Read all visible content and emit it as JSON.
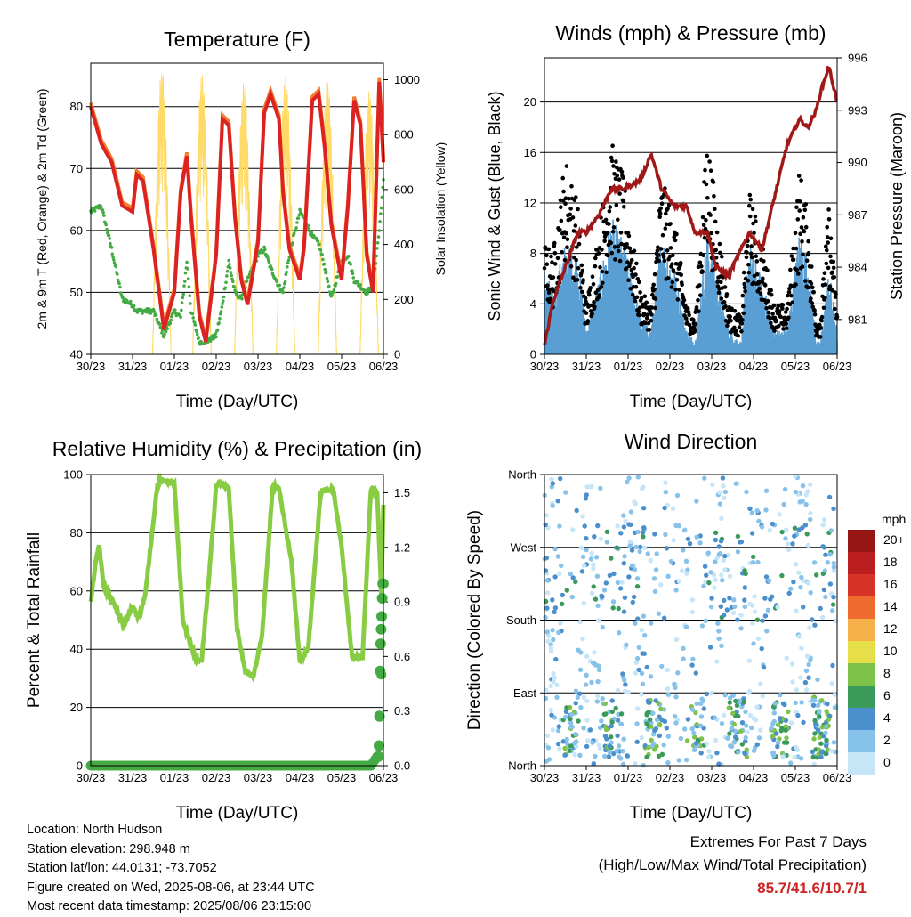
{
  "x_ticks": [
    "30/23",
    "31/23",
    "01/23",
    "02/23",
    "03/23",
    "04/23",
    "05/23",
    "06/23"
  ],
  "colors": {
    "temp_2m": "#dd2222",
    "temp_9m": "#f08030",
    "dewpoint": "#44aa44",
    "solar": "#ffd966",
    "gust": "#000000",
    "wind": "#5a9fd4",
    "pressure": "#a01818",
    "rh": "#88cc44",
    "precip": "#44aa44"
  },
  "chart_data": [
    {
      "type": "line",
      "title": "Temperature (F)",
      "xlabel": "Time (Day/UTC)",
      "ylabel": "2m & 9m T (Red, Orange) & 2m Td (Green)",
      "y2label": "Solar Insolation (Yellow)",
      "ylim": [
        40,
        87
      ],
      "y2lim": [
        0,
        1060
      ],
      "yticks": [
        40,
        50,
        60,
        70,
        80
      ],
      "y2ticks": [
        0,
        200,
        400,
        600,
        800,
        1000
      ],
      "x_days": [
        0,
        0.25,
        0.5,
        0.75,
        1,
        1.1,
        1.25,
        1.5,
        1.75,
        2,
        2.15,
        2.3,
        2.4,
        2.6,
        2.75,
        3,
        3.15,
        3.3,
        3.45,
        3.6,
        3.75,
        4,
        4.15,
        4.3,
        4.5,
        4.6,
        4.75,
        5,
        5.1,
        5.3,
        5.45,
        5.6,
        5.75,
        6,
        6.15,
        6.3,
        6.45,
        6.6,
        6.75,
        6.9,
        7
      ],
      "series": [
        {
          "name": "2m T",
          "values": [
            80,
            74,
            71,
            64,
            63,
            69,
            68,
            57,
            44,
            50,
            66,
            72,
            62,
            46,
            42,
            56,
            78,
            77,
            62,
            52,
            48,
            58,
            79,
            82,
            78,
            66,
            57,
            52,
            57,
            81,
            82,
            73,
            61,
            52,
            64,
            81,
            77,
            56,
            50,
            84,
            71
          ]
        },
        {
          "name": "2m Td",
          "values": [
            63,
            64,
            57,
            49,
            48,
            47,
            47,
            47,
            43,
            47,
            46,
            55,
            47,
            42,
            42,
            43,
            48,
            55,
            50,
            49,
            52,
            56,
            57,
            54,
            51,
            50,
            56,
            63,
            62,
            59,
            58,
            54,
            49,
            55,
            56,
            52,
            51,
            50,
            51,
            60,
            68
          ]
        }
      ],
      "solar_peaks_days": [
        1.7,
        2.66,
        3.66,
        4.66,
        5.66,
        6.66
      ],
      "solar_peak_values": [
        1040,
        1020,
        990,
        1010,
        1000,
        960
      ]
    },
    {
      "type": "line",
      "title": "Winds (mph) & Pressure (mb)",
      "xlabel": "Time (Day/UTC)",
      "ylabel": "Sonic Wind & Gust (Blue, Black)",
      "y2label": "Station Pressure (Maroon)",
      "ylim": [
        0,
        23.5
      ],
      "y2lim": [
        979,
        996
      ],
      "yticks": [
        0,
        4,
        8,
        12,
        16,
        20
      ],
      "y2ticks": [
        981,
        984,
        987,
        990,
        993,
        996
      ],
      "x_days": [
        0,
        0.2,
        0.5,
        0.8,
        1,
        1.3,
        1.6,
        1.9,
        2.3,
        2.55,
        2.8,
        3.1,
        3.4,
        3.6,
        3.9,
        4.1,
        4.4,
        4.7,
        4.9,
        5.2,
        5.5,
        5.8,
        6.1,
        6.3,
        6.5,
        6.6,
        6.8,
        7
      ],
      "series": [
        {
          "name": "Station Pressure",
          "values": [
            979.5,
            982,
            984,
            986,
            986,
            987,
            988.5,
            988.5,
            989,
            990.5,
            988.5,
            987.5,
            987.5,
            986,
            986,
            984,
            983.5,
            985,
            986,
            985,
            988,
            991,
            992.5,
            992,
            993,
            994,
            995.5,
            993.5
          ]
        },
        {
          "name": "Sonic Wind envelope",
          "values": [
            7,
            5,
            9,
            8,
            2,
            6,
            11,
            9,
            3,
            2,
            10,
            7,
            2,
            1,
            10,
            7,
            2,
            1,
            9,
            6,
            2,
            2,
            10,
            8,
            1,
            1,
            7,
            2
          ]
        },
        {
          "name": "Gust envelope",
          "values": [
            9,
            8,
            16,
            12,
            4,
            10,
            17,
            14,
            5,
            4,
            14,
            11,
            4,
            3,
            18,
            12,
            4,
            3,
            13,
            9,
            4,
            4,
            15,
            11,
            3,
            3,
            12,
            4
          ]
        }
      ]
    },
    {
      "type": "line",
      "title": "Relative Humidity (%) & Precipitation (in)",
      "xlabel": "Time (Day/UTC)",
      "ylabel": "Percent & Total Rainfall",
      "ylim": [
        0,
        100
      ],
      "y2lim": [
        0,
        1.6
      ],
      "yticks": [
        0,
        20,
        40,
        60,
        80,
        100
      ],
      "y2ticks": [
        0.0,
        0.3,
        0.6,
        0.9,
        1.2,
        1.5
      ],
      "x_days": [
        0,
        0.1,
        0.2,
        0.3,
        0.5,
        0.8,
        1,
        1.15,
        1.3,
        1.45,
        1.6,
        1.8,
        2,
        2.2,
        2.5,
        2.65,
        2.8,
        3,
        3.15,
        3.3,
        3.5,
        3.7,
        3.9,
        4.1,
        4.35,
        4.5,
        4.8,
        5,
        5.2,
        5.5,
        5.8,
        6,
        6.25,
        6.5,
        6.7,
        6.85,
        6.95,
        7
      ],
      "series": [
        {
          "name": "Relative Humidity",
          "values": [
            56,
            68,
            76,
            62,
            57,
            48,
            55,
            51,
            58,
            78,
            97,
            98,
            97,
            50,
            37,
            36,
            60,
            96,
            97,
            95,
            47,
            32,
            31,
            45,
            96,
            95,
            70,
            36,
            40,
            94,
            95,
            75,
            37,
            37,
            95,
            94,
            58,
            90
          ]
        },
        {
          "name": "Total Precipitation",
          "values": [
            0,
            0,
            0,
            0,
            0,
            0,
            0,
            0,
            0,
            0,
            0,
            0,
            0,
            0,
            0,
            0,
            0,
            0,
            0,
            0,
            0,
            0,
            0,
            0,
            0,
            0,
            0,
            0,
            0,
            0,
            0,
            0,
            0,
            0,
            0,
            0.05,
            0.5,
            1.0
          ]
        }
      ]
    },
    {
      "type": "scatter",
      "title": "Wind Direction",
      "xlabel": "Time (Day/UTC)",
      "ylabel": "Direction (Colored By Speed)",
      "yticks": [
        "North",
        "East",
        "South",
        "West",
        "North"
      ],
      "legend_title": "mph",
      "legend_labels": [
        "0",
        "2",
        "4",
        "6",
        "8",
        "10",
        "12",
        "14",
        "16",
        "18",
        "20+"
      ],
      "legend_colors": [
        "#c6e6f8",
        "#86c2ea",
        "#4b8fcc",
        "#3a9a5a",
        "#7fc24a",
        "#e6df4a",
        "#f5b04a",
        "#ef6a2e",
        "#d83328",
        "#bb1e1e",
        "#951515"
      ],
      "legend_placement": "right"
    }
  ],
  "info": {
    "location": "Location: North Hudson",
    "elevation": "Station elevation: 298.948 m",
    "latlon": "Station lat/lon: 44.0131; -73.7052",
    "created": "Figure created on Wed, 2025-08-06, at 23:44 UTC",
    "timestamp": "Most recent data timestamp: 2025/08/06 23:15:00"
  },
  "extremes": {
    "title": "Extremes For Past 7 Days",
    "subtitle": "(High/Low/Max Wind/Total Precipitation)",
    "values": "85.7/41.6/10.7/1"
  }
}
